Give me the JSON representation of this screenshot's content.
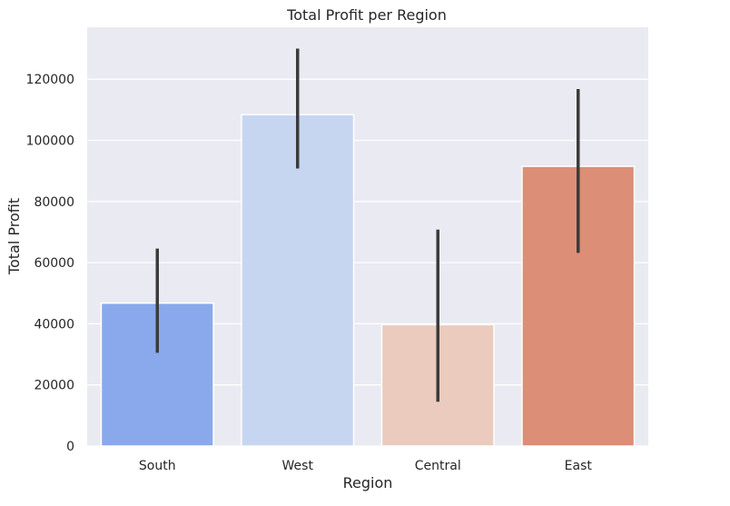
{
  "chart_data": {
    "type": "bar",
    "title": "Total Profit per Region",
    "xlabel": "Region",
    "ylabel": "Total Profit",
    "categories": [
      "South",
      "West",
      "Central",
      "East"
    ],
    "values": [
      46750,
      108400,
      39700,
      91500
    ],
    "error_low": [
      30500,
      90800,
      14500,
      63200
    ],
    "error_high": [
      64600,
      130000,
      70800,
      116800
    ],
    "colors": [
      "#8aa9ec",
      "#c7d6f0",
      "#eacbbd",
      "#dc8e77"
    ],
    "ylim": [
      0,
      137000
    ],
    "yticks": [
      0,
      20000,
      40000,
      60000,
      80000,
      100000,
      120000
    ],
    "ytick_labels": [
      "0",
      "20000",
      "40000",
      "60000",
      "80000",
      "100000",
      "120000"
    ],
    "grid": true,
    "background": "#eaeaf2"
  }
}
